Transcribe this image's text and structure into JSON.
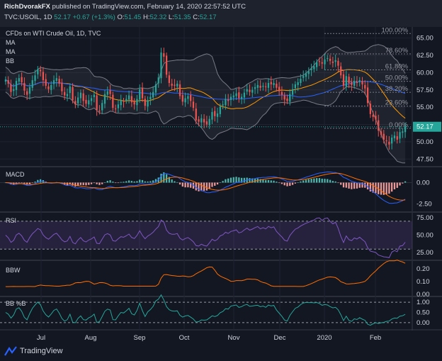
{
  "header": {
    "author": "RichDvorakFX",
    "published": "published on TradingView.com, February 14, 2020 22:57:52 UTC",
    "symbol": "TVC:USOIL, 1D",
    "last": "52.17",
    "change": "+0.67 (+1.3%)",
    "o_label": "O:",
    "o_value": "51.45",
    "h_label": "H:",
    "h_value": "52.32",
    "l_label": "L:",
    "l_value": "51.35",
    "c_label": "C:",
    "c_value": "52.17"
  },
  "indicators": {
    "title": "CFDs on WTI Crude Oil, 1D, TVC",
    "ma1": "MA",
    "ma2": "MA",
    "bb": "BB",
    "macd": "MACD",
    "rsi": "RSI",
    "bbw": "BBW",
    "bbpct": "BB %B"
  },
  "brand": "TradingView",
  "colors": {
    "up": "#26a69a",
    "down": "#ef5350",
    "price_label_bg": "#26a69a"
  },
  "chart_data": [
    {
      "type": "candlestick",
      "panel": "price",
      "x_ticks": [
        "Jul",
        "Aug",
        "Sep",
        "Oct",
        "Nov",
        "Dec",
        "2020",
        "Feb"
      ],
      "y_ticks": [
        47.5,
        50.0,
        52.5,
        55.0,
        57.5,
        60.0,
        62.5,
        65.0
      ],
      "ylim": [
        46.5,
        66.5
      ],
      "last_price": "52.17",
      "fib_levels": [
        {
          "label": "100.00%",
          "value": 65.65
        },
        {
          "label": "78.60%",
          "value": 62.7
        },
        {
          "label": "61.80%",
          "value": 60.4
        },
        {
          "label": "50.00%",
          "value": 58.75
        },
        {
          "label": "38.20%",
          "value": 57.15
        },
        {
          "label": "23.60%",
          "value": 55.15
        },
        {
          "label": "0.00%",
          "value": 51.95
        }
      ],
      "close": [
        59.0,
        58.4,
        57.2,
        57.6,
        58.8,
        59.2,
        58.6,
        57.4,
        56.8,
        57.9,
        58.9,
        59.6,
        60.5,
        60.2,
        58.9,
        58.1,
        57.6,
        58.2,
        58.9,
        59.2,
        58.4,
        57.3,
        56.7,
        56.9,
        58.0,
        56.0,
        55.4,
        56.4,
        57.1,
        55.9,
        55.5,
        56.0,
        56.3,
        56.8,
        54.6,
        54.4,
        55.6,
        56.9,
        57.3,
        56.9,
        54.9,
        54.7,
        55.4,
        56.0,
        55.8,
        56.2,
        56.7,
        55.7,
        55.4,
        56.2,
        57.6,
        56.3,
        55.2,
        56.0,
        56.5,
        57.2,
        58.3,
        59.3,
        62.9,
        62.3,
        59.7,
        58.5,
        58.1,
        58.1,
        58.4,
        56.6,
        55.8,
        56.3,
        56.6,
        55.9,
        54.9,
        53.1,
        52.9,
        53.4,
        52.8,
        52.5,
        53.3,
        54.3,
        53.7,
        54.1,
        55.1,
        55.4,
        56.2,
        55.9,
        56.5,
        56.7,
        57.0,
        56.3,
        56.5,
        57.1,
        57.6,
        57.2,
        57.5,
        57.9,
        58.2,
        57.8,
        58.1,
        57.9,
        58.5,
        58.3,
        58.5,
        57.8,
        57.3,
        56.8,
        56.1,
        55.9,
        56.9,
        57.6,
        58.3,
        58.6,
        59.1,
        59.5,
        59.9,
        60.2,
        60.6,
        60.9,
        61.5,
        61.6,
        61.3,
        61.9,
        62.1,
        61.7,
        61.4,
        61.8,
        61.0,
        59.6,
        58.1,
        59.5,
        58.5,
        58.2,
        58.8,
        58.5,
        58.9,
        58.3,
        57.7,
        55.6,
        54.0,
        53.6,
        53.2,
        51.6,
        51.0,
        50.3,
        50.1,
        49.6,
        50.6,
        50.9,
        50.3,
        51.4,
        51.5,
        52.2
      ],
      "series": [
        {
          "name": "MA"
        },
        {
          "name": "MA"
        },
        {
          "name": "BB"
        }
      ]
    },
    {
      "type": "line",
      "panel": "MACD",
      "y_ticks": [
        0.0,
        -2.5
      ]
    },
    {
      "type": "line",
      "panel": "RSI",
      "y_ticks": [
        75.0,
        50.0,
        25.0
      ]
    },
    {
      "type": "line",
      "panel": "BBW",
      "y_ticks": [
        0.2,
        0.1,
        0.0
      ]
    },
    {
      "type": "line",
      "panel": "BB %B",
      "y_ticks": [
        1.0,
        0.5,
        0.0
      ]
    }
  ]
}
